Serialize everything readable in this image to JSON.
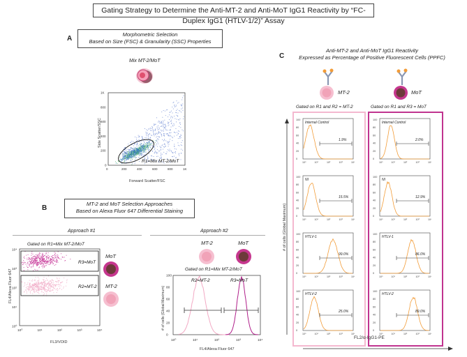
{
  "title": "Gating Strategy to Determine the Anti-MT-2 and Anti-MoT IgG1 Reactivity by “FC-Duplex IgG1 (HTLV-1/2)” Assay",
  "panelA": {
    "letter": "A",
    "box_line1": "Morphometric Selection",
    "box_line2": "Based on Size (FSC) & Granularity (SSC) Properties",
    "cell_label": "Mix MT-2/MoT",
    "gate_label": "R1=Mix MT-2/MoT",
    "xlabel": "Forward Scatter/FSC",
    "ylabel": "Side Scatter/SSC",
    "ticks": [
      "0",
      "200",
      "400",
      "600",
      "800",
      "1K"
    ]
  },
  "panelB": {
    "letter": "B",
    "box_line1": "MT-2 and MoT Selection Approaches",
    "box_line2": "Based on Alexa Fluor 647 Differential Staining",
    "approach1": "Approach #1",
    "approach2": "Approach #2",
    "gated1": "Gated on R1=Mix MT-2/MoT",
    "gated2": "Gated on R1=Mix MT-2/MoT",
    "r3": "R3=MoT",
    "r2": "R2=MT-2",
    "mot": "MoT",
    "mt2": "MT-2",
    "xlabel1": "FL3/VOID",
    "ylabel1": "FL4/Alexa Fluor 647",
    "hist_r2": "R2=MT-2",
    "hist_r3": "R3=MoT",
    "xlabel2": "FL4/Alexa Fluor 647",
    "ylabel2": "# of cells (Global Maximum)",
    "log_ticks": [
      "10⁰",
      "10¹",
      "10²",
      "10³",
      "10⁴"
    ],
    "y_ticks": [
      "0",
      "20",
      "40",
      "60",
      "80",
      "100"
    ]
  },
  "panelC": {
    "letter": "C",
    "title_line1": "Anti-MT-2 and Anti-MoT IgG1 Reactivity",
    "title_line2": "Expressed as Percentage of Positive Fluorescent Cells (PPFC)",
    "col1_label": "MT-2",
    "col2_label": "MoT",
    "gated_left": "Gated on R1 and R2 = MT-2",
    "gated_right": "Gated on R1 and R3 = MoT",
    "ylabel": "# of cells (Global Maximum)",
    "xlabel": "FL2/α-IgG1-PE",
    "rows": [
      {
        "name": "Internal Control",
        "left": "1.9%",
        "right": "2.0%"
      },
      {
        "name": "NI",
        "left": "15.5%",
        "right": "12.9%"
      },
      {
        "name": "HTLV-1",
        "left": "99.0%",
        "right": "86.0%"
      },
      {
        "name": "HTLV-2",
        "left": "25.0%",
        "right": "89.0%"
      }
    ],
    "hist_y_ticks": [
      "100",
      "80",
      "60",
      "40",
      "20",
      "0"
    ]
  },
  "colors": {
    "mt2_pink": "#f2a9c4",
    "mot_magenta": "#c0338f",
    "orange": "#f29c38",
    "blue": "#2f55b8"
  }
}
